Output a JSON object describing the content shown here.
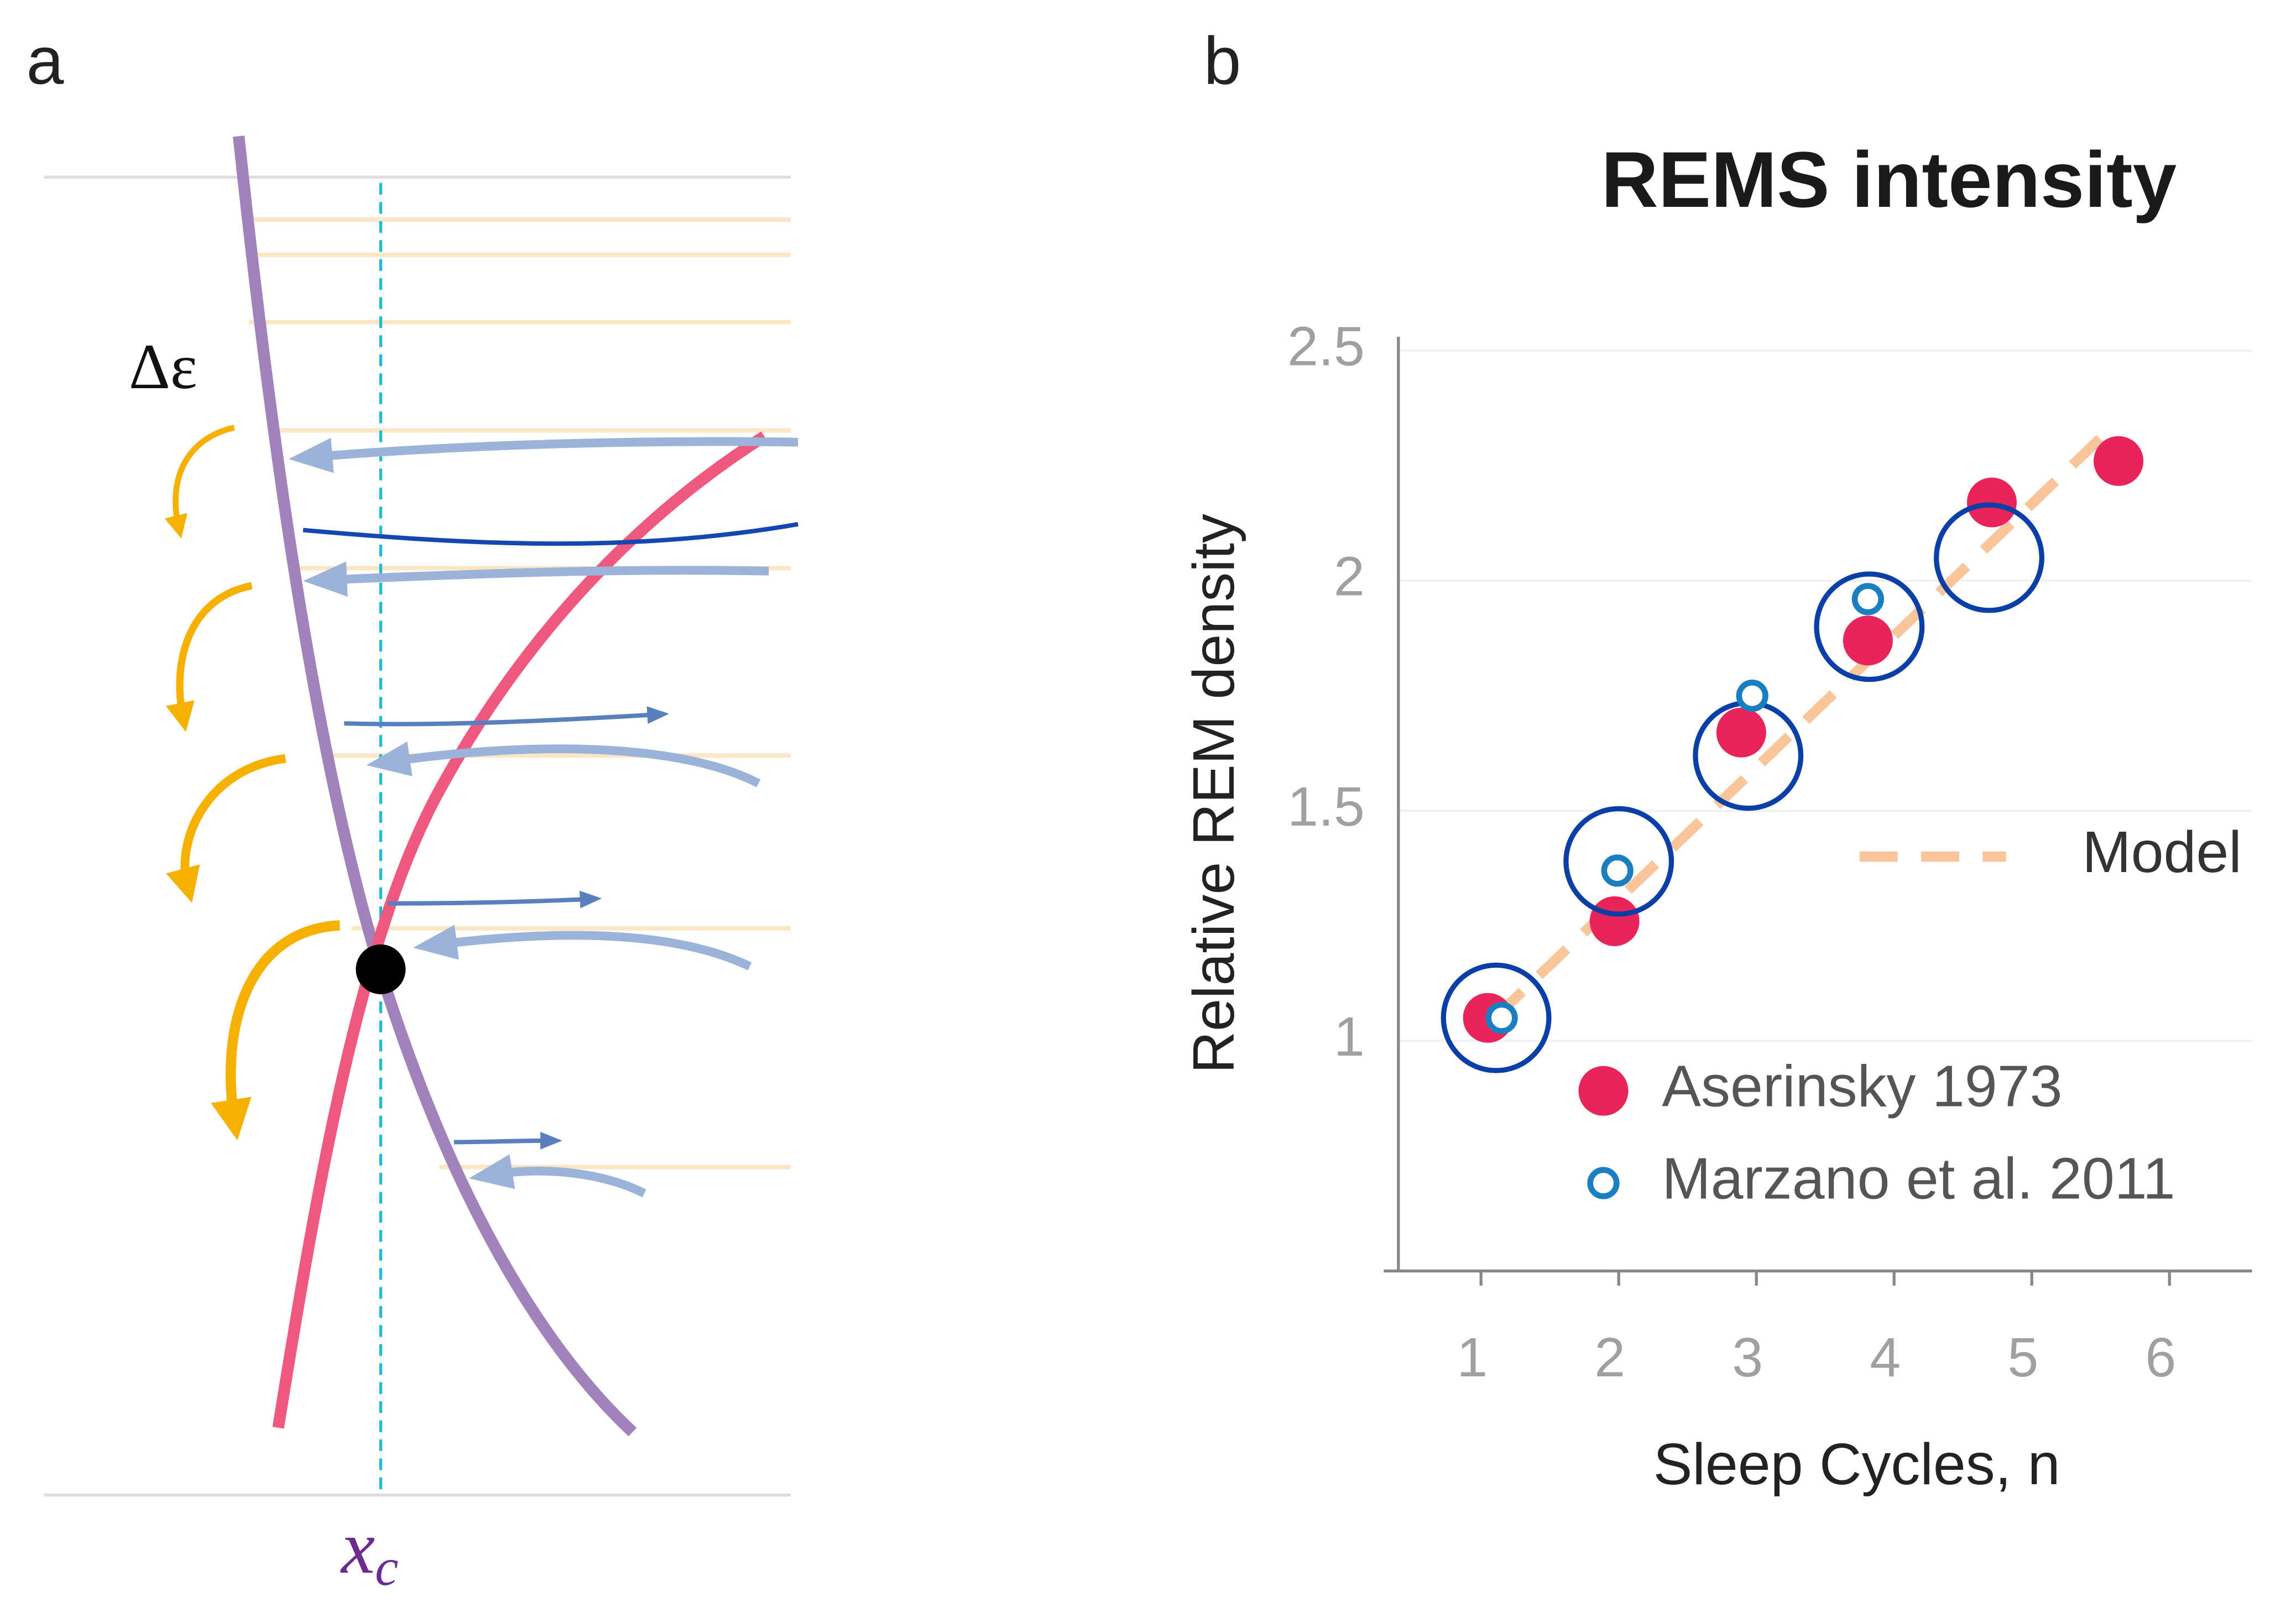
{
  "panel_a": {
    "label": "a",
    "delta_label": "Δε",
    "x_label": {
      "main": "x",
      "sub": "c"
    }
  },
  "chart_data": {
    "type": "scatter",
    "panel_label": "b",
    "title": "REMS intensity",
    "x_label": "Sleep Cycles, n",
    "y_label": "Relative REM density",
    "xlim": [
      0.4,
      6.6
    ],
    "ylim": [
      0.5,
      2.53
    ],
    "xticks": [
      1,
      2,
      3,
      4,
      5,
      6
    ],
    "yticks": [
      1,
      1.5,
      2,
      2.5
    ],
    "grid": true,
    "series": [
      {
        "name": "Model",
        "color": "#f9c59a",
        "marker": "dashed-line",
        "x": [
          1.1,
          5.5
        ],
        "values": [
          1.05,
          2.31
        ]
      },
      {
        "name": "Aserinsky 1973",
        "color": "#e8245a",
        "marker": "filled",
        "x": [
          1.05,
          1.97,
          2.89,
          3.81,
          4.71,
          5.63
        ],
        "values": [
          1.05,
          1.26,
          1.67,
          1.87,
          2.17,
          2.26
        ]
      },
      {
        "color": "#0a3fa8",
        "marker": "ring",
        "x": [
          1.11,
          2.0,
          2.94,
          3.82,
          4.69
        ],
        "values": [
          1.05,
          1.39,
          1.62,
          1.9,
          2.05
        ]
      },
      {
        "name": "Marzano et al. 2011",
        "color": "#1a7fc0",
        "marker": "open",
        "x": [
          1.15,
          1.99,
          2.97,
          3.81
        ],
        "values": [
          1.05,
          1.37,
          1.75,
          1.96
        ]
      }
    ]
  }
}
